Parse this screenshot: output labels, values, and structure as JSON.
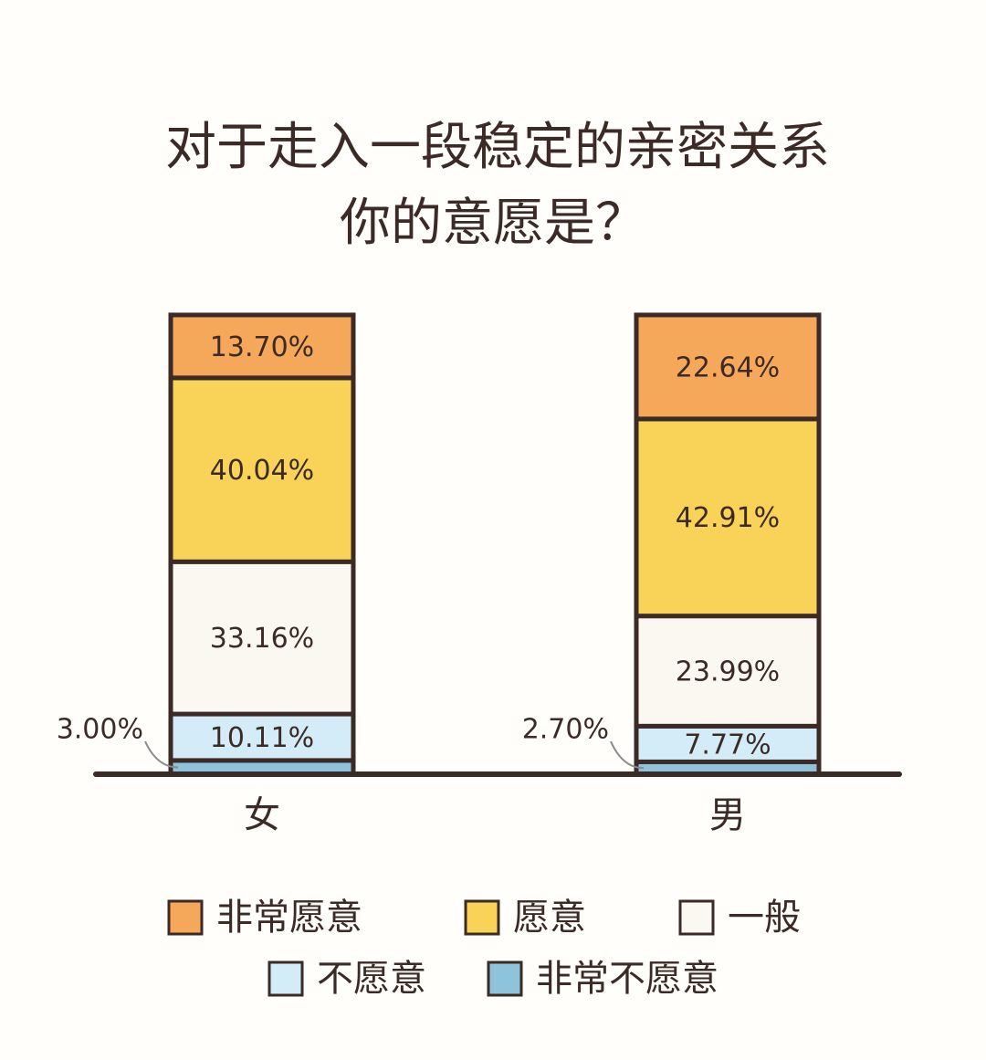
{
  "chart_data": {
    "type": "stacked_bar",
    "title": [
      "对于走入一段稳定的亲密关系",
      "你的意愿是？"
    ],
    "categories": [
      "女",
      "男"
    ],
    "ylim": [
      0,
      100
    ],
    "series": [
      {
        "name": "非常愿意",
        "color": "#f5a85a",
        "values": [
          13.7,
          22.64
        ],
        "value_labels": [
          "13.70%",
          "22.64%"
        ]
      },
      {
        "name": "愿意",
        "color": "#f8d357",
        "values": [
          40.04,
          42.91
        ],
        "value_labels": [
          "40.04%",
          "42.91%"
        ]
      },
      {
        "name": "一般",
        "color": "#fbf8f1",
        "values": [
          33.16,
          23.99
        ],
        "value_labels": [
          "33.16%",
          "23.99%"
        ]
      },
      {
        "name": "不愿意",
        "color": "#d3ecf8",
        "values": [
          10.11,
          7.77
        ],
        "value_labels": [
          "10.11%",
          "7.77%"
        ]
      },
      {
        "name": "非常不愿意",
        "color": "#8ec3db",
        "values": [
          3.0,
          2.7
        ],
        "value_labels": [
          "3.00%",
          "2.70%"
        ]
      }
    ]
  }
}
